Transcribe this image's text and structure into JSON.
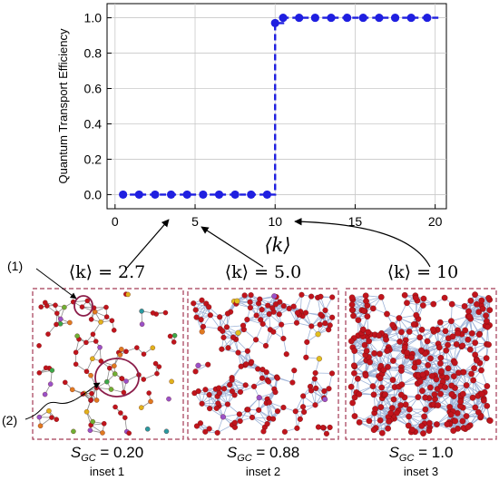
{
  "chart_data": {
    "type": "scatter",
    "ylabel": "Quantum Transport Efficiency",
    "xlabel": "⟨k⟩",
    "xlim": [
      -0.5,
      20.7
    ],
    "ylim": [
      -0.08,
      1.08
    ],
    "x_ticks": [
      "0",
      "5",
      "10",
      "15",
      "20"
    ],
    "y_ticks": [
      "0.0",
      "0.2",
      "0.4",
      "0.6",
      "0.8",
      "1.0"
    ],
    "x_tick_values": [
      0,
      5,
      10,
      15,
      20
    ],
    "y_tick_values": [
      0.0,
      0.2,
      0.4,
      0.6,
      0.8,
      1.0
    ],
    "grid": true,
    "marker_color": "#1f1fe0",
    "series": [
      {
        "x": [
          0.5,
          1.5,
          2.5,
          3.5,
          4.5,
          5.5,
          6.5,
          7.5,
          8.5,
          9.5,
          10.0,
          10.5,
          11.5,
          12.5,
          13.5,
          14.5,
          15.5,
          16.5,
          17.5,
          18.5,
          19.5
        ],
        "y": [
          0.0,
          0.0,
          0.0,
          0.0,
          0.0,
          0.0,
          0.0,
          0.0,
          0.0,
          0.0,
          0.97,
          1.0,
          1.0,
          1.0,
          1.0,
          1.0,
          1.0,
          1.0,
          1.0,
          1.0,
          1.0
        ]
      }
    ]
  },
  "insets": [
    {
      "k_label": "⟨k⟩ = 2.7",
      "sgc_label": "S_GC = 0.20",
      "caption": "inset 1"
    },
    {
      "k_label": "⟨k⟩ = 5.0",
      "sgc_label": "S_GC = 0.88",
      "caption": "inset 2"
    },
    {
      "k_label": "⟨k⟩ = 10",
      "sgc_label": "S_GC = 1.0",
      "caption": "inset 3"
    }
  ],
  "annotations": {
    "label1": "(1)",
    "label2": "(2)"
  },
  "colors": {
    "frame": "#a33a55",
    "node_main": "#c0141c",
    "edge": "#9fb4d8"
  }
}
